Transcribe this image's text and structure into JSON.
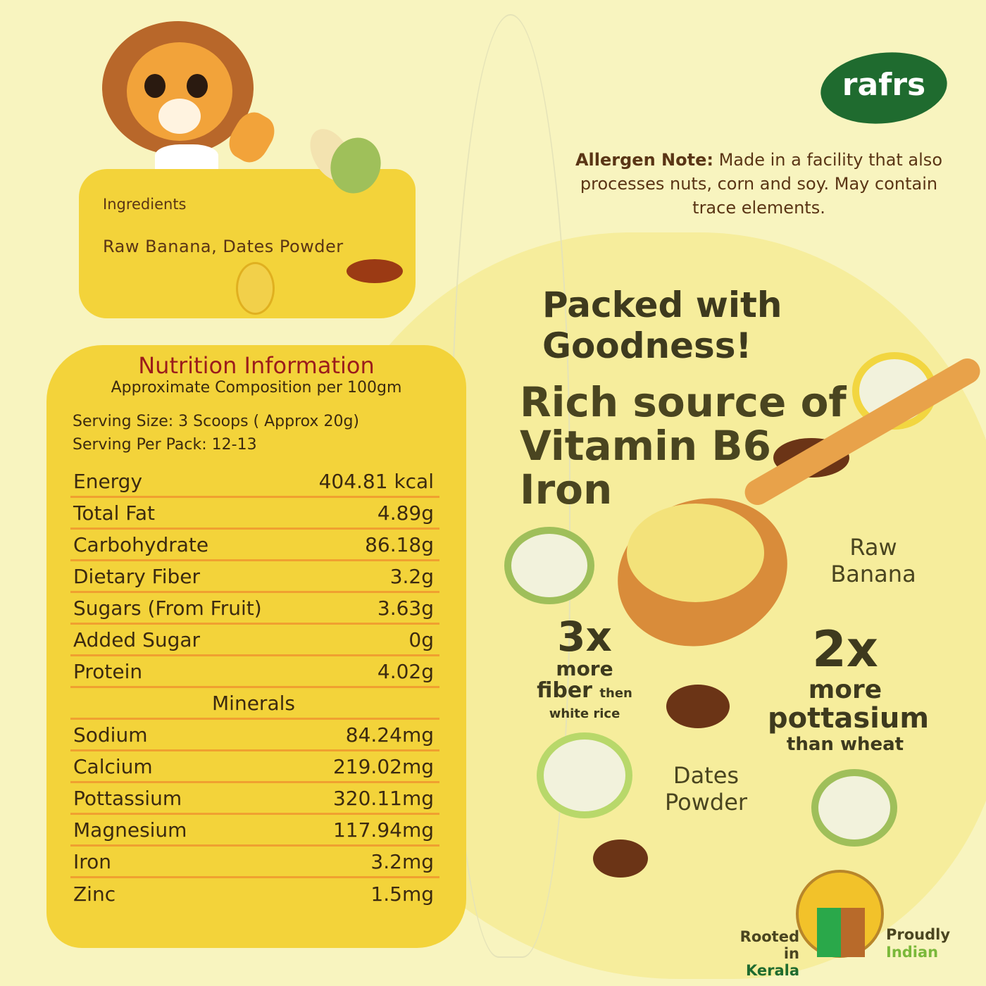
{
  "brand": {
    "logo_text": "rafrs",
    "colors": {
      "logo": "#1f6b2f",
      "card": "#f3d33a",
      "accent_title": "#9b1c1c",
      "rule": "#f0a030"
    }
  },
  "ingredients": {
    "title": "Ingredients",
    "text": "Raw Banana, Dates Powder"
  },
  "nutrition": {
    "title": "Nutrition Information",
    "subtitle": "Approximate Composition per 100gm",
    "serving_size": "Serving Size: 3 Scoops ( Approx 20g)",
    "serving_per_pack": "Serving Per Pack: 12-13",
    "rows": [
      {
        "label": "Energy",
        "value": "404.81 kcal"
      },
      {
        "label": "Total Fat",
        "value": "4.89g"
      },
      {
        "label": "Carbohydrate",
        "value": "86.18g"
      },
      {
        "label": "Dietary Fiber",
        "value": "3.2g"
      },
      {
        "label": "Sugars (From Fruit)",
        "value": "3.63g"
      },
      {
        "label": "Added Sugar",
        "value": "0g"
      },
      {
        "label": "Protein",
        "value": "4.02g"
      }
    ],
    "minerals_heading": "Minerals",
    "minerals": [
      {
        "label": "Sodium",
        "value": "84.24mg"
      },
      {
        "label": "Calcium",
        "value": "219.02mg"
      },
      {
        "label": "Pottassium",
        "value": "320.11mg"
      },
      {
        "label": "Magnesium",
        "value": "117.94mg"
      },
      {
        "label": "Iron",
        "value": "3.2mg"
      },
      {
        "label": "Zinc",
        "value": "1.5mg"
      }
    ]
  },
  "allergen": {
    "label": "Allergen Note:",
    "text": " Made in a facility that also processes nuts, corn and soy. May contain trace elements."
  },
  "headline": "Packed with Goodness!",
  "rich": {
    "line1": "Rich source of",
    "line2": "Vitamin B6",
    "line3": "Iron"
  },
  "labels": {
    "raw_banana_1": "Raw",
    "raw_banana_2": "Banana",
    "dates_1": "Dates",
    "dates_2": "Powder"
  },
  "stat_fiber": {
    "big": "3x",
    "l1": "more",
    "l2": "fiber",
    "l2b": "then",
    "l3": "white rice"
  },
  "stat_potassium": {
    "big": "2x",
    "l1": "more",
    "l2": "pottasium",
    "l3": "than wheat"
  },
  "badge": {
    "left1": "Rooted in",
    "left2": "Kerala",
    "right1": "Proudly",
    "right2": "Indian"
  }
}
